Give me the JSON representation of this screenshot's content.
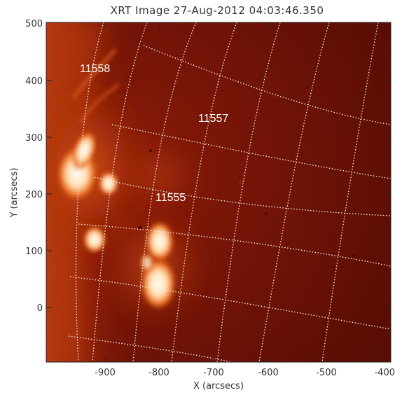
{
  "title": "XRT Image 27-Aug-2012 04:03:46.350",
  "x_axis": {
    "label": "X (arcsecs)",
    "ticks": [
      "-900",
      "-800",
      "-700",
      "-600",
      "-500",
      "-400"
    ]
  },
  "y_axis": {
    "label": "Y (arcsecs)",
    "ticks": [
      "500",
      "400",
      "300",
      "200",
      "100",
      "0"
    ]
  },
  "regions": [
    {
      "label": "11558"
    },
    {
      "label": "11557"
    },
    {
      "label": "11555"
    }
  ],
  "colors": {
    "background_disk": "#6e1206",
    "limb_glow": "#b8330c",
    "bright_core": "#fff6e6",
    "grid_line": "#f2f2f2",
    "axis": "#222222"
  }
}
